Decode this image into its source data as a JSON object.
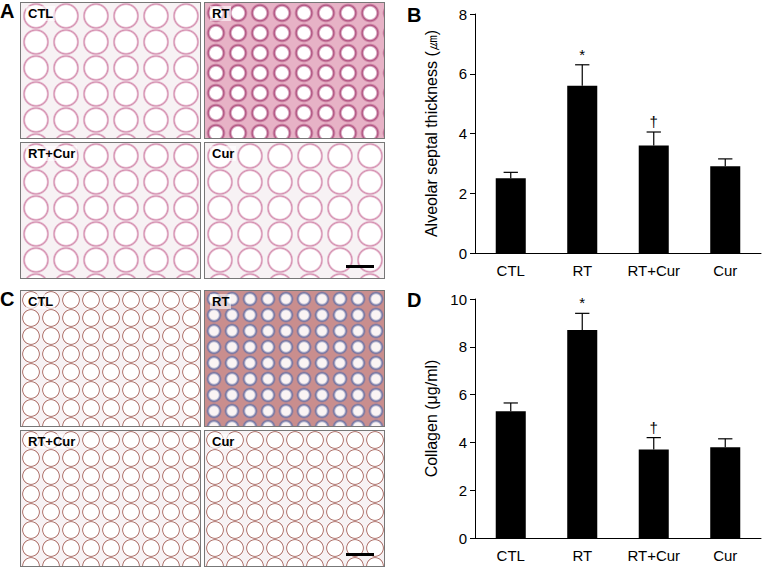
{
  "chart_data": [
    {
      "type": "bar",
      "title": "B",
      "ylabel": "Alveolar septal thickness (㎛)",
      "categories": [
        "CTL",
        "RT",
        "RT+Cur",
        "Cur"
      ],
      "values": [
        2.5,
        5.6,
        3.6,
        2.9
      ],
      "errors": [
        0.2,
        0.7,
        0.45,
        0.25
      ],
      "annotations": [
        {
          "category": "RT",
          "text": "*"
        },
        {
          "category": "RT+Cur",
          "text": "†"
        }
      ],
      "color": "#000000",
      "ylim": [
        0,
        8
      ],
      "yticks": [
        0,
        2,
        4,
        6,
        8
      ],
      "grid": false
    },
    {
      "type": "bar",
      "title": "D",
      "ylabel": "Collagen (μg/ml)",
      "categories": [
        "CTL",
        "RT",
        "RT+Cur",
        "Cur"
      ],
      "values": [
        5.3,
        8.7,
        3.7,
        3.8
      ],
      "errors": [
        0.35,
        0.7,
        0.5,
        0.35
      ],
      "annotations": [
        {
          "category": "RT",
          "text": "*"
        },
        {
          "category": "RT+Cur",
          "text": "†"
        }
      ],
      "color": "#000000",
      "ylim": [
        0,
        10
      ],
      "yticks": [
        0,
        2,
        4,
        6,
        8,
        10
      ],
      "grid": false
    }
  ],
  "image_panels": [
    {
      "letter": "A",
      "labels": [
        "CTL",
        "RT",
        "RT+Cur",
        "Cur"
      ]
    },
    {
      "letter": "C",
      "labels": [
        "CTL",
        "RT",
        "RT+Cur",
        "Cur"
      ]
    }
  ]
}
